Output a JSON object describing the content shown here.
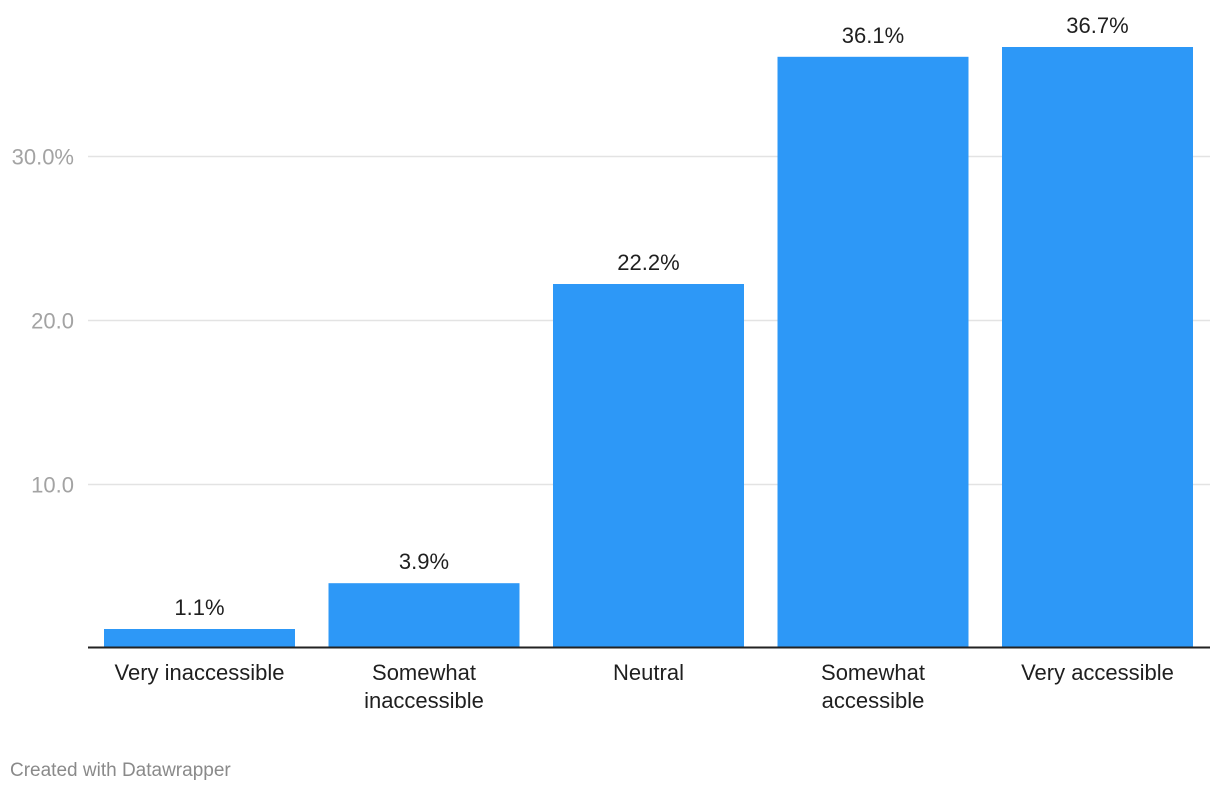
{
  "chart_data": {
    "type": "bar",
    "categories": [
      [
        "Very inaccessible"
      ],
      [
        "Somewhat",
        "inaccessible"
      ],
      [
        "Neutral"
      ],
      [
        "Somewhat",
        "accessible"
      ],
      [
        "Very accessible"
      ]
    ],
    "values": [
      1.1,
      3.9,
      22.2,
      36.1,
      36.7
    ],
    "value_labels": [
      "1.1%",
      "3.9%",
      "22.2%",
      "36.1%",
      "36.7%"
    ],
    "y_ticks": [
      {
        "value": 10,
        "label": "10.0"
      },
      {
        "value": 20,
        "label": "20.0"
      },
      {
        "value": 30,
        "label": "30.0%"
      }
    ],
    "ylim": [
      0,
      36.7
    ],
    "grid": true,
    "bar_color": "#2d98f7",
    "title": "",
    "xlabel": "",
    "ylabel": ""
  },
  "footer": {
    "credit": "Created with Datawrapper"
  }
}
